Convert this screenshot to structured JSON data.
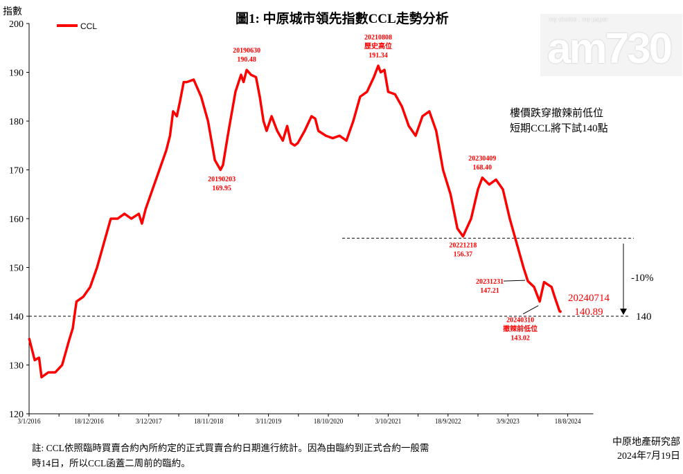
{
  "chart_data": {
    "type": "line",
    "title": "圖1: 中原城市領先指數CCL走勢分析",
    "ylabel": "指數",
    "ylim": [
      120,
      200
    ],
    "yticks": [
      120,
      130,
      140,
      150,
      160,
      170,
      180,
      190,
      200
    ],
    "xticks": [
      {
        "label": "3/1/2016",
        "year": 2016.0
      },
      {
        "label": "18/12/2016",
        "year": 2016.96
      },
      {
        "label": "3/12/2017",
        "year": 2017.92
      },
      {
        "label": "18/11/2018",
        "year": 2018.88
      },
      {
        "label": "3/11/2019",
        "year": 2019.84
      },
      {
        "label": "18/10/2020",
        "year": 2020.8
      },
      {
        "label": "3/10/2021",
        "year": 2021.76
      },
      {
        "label": "18/9/2022",
        "year": 2022.72
      },
      {
        "label": "3/9/2023",
        "year": 2023.68
      },
      {
        "label": "18/8/2024",
        "year": 2024.64
      }
    ],
    "xlim": [
      2016.0,
      2025.05
    ],
    "legend": {
      "label": "CCL",
      "position": "top-left"
    },
    "series": [
      {
        "name": "CCL",
        "color": "#ff0000",
        "points": [
          [
            2016.0,
            135.5
          ],
          [
            2016.09,
            131
          ],
          [
            2016.16,
            131.5
          ],
          [
            2016.2,
            127.5
          ],
          [
            2016.31,
            128.5
          ],
          [
            2016.42,
            128.5
          ],
          [
            2016.53,
            130
          ],
          [
            2016.64,
            135
          ],
          [
            2016.7,
            137.5
          ],
          [
            2016.76,
            143
          ],
          [
            2016.87,
            144
          ],
          [
            2016.98,
            146
          ],
          [
            2017.09,
            150
          ],
          [
            2017.2,
            155
          ],
          [
            2017.31,
            160
          ],
          [
            2017.42,
            160
          ],
          [
            2017.53,
            161
          ],
          [
            2017.64,
            160
          ],
          [
            2017.76,
            161
          ],
          [
            2017.81,
            159
          ],
          [
            2017.87,
            162
          ],
          [
            2017.98,
            166
          ],
          [
            2018.09,
            170
          ],
          [
            2018.2,
            174
          ],
          [
            2018.26,
            177
          ],
          [
            2018.31,
            182
          ],
          [
            2018.37,
            181
          ],
          [
            2018.42,
            184
          ],
          [
            2018.48,
            188
          ],
          [
            2018.53,
            188
          ],
          [
            2018.64,
            188.5
          ],
          [
            2018.76,
            185
          ],
          [
            2018.87,
            180
          ],
          [
            2018.98,
            172
          ],
          [
            2019.07,
            170
          ],
          [
            2019.11,
            171
          ],
          [
            2019.2,
            178
          ],
          [
            2019.31,
            186
          ],
          [
            2019.4,
            189.5
          ],
          [
            2019.44,
            188
          ],
          [
            2019.49,
            190.48
          ],
          [
            2019.56,
            189.5
          ],
          [
            2019.64,
            189
          ],
          [
            2019.7,
            185
          ],
          [
            2019.76,
            180
          ],
          [
            2019.81,
            178
          ],
          [
            2019.89,
            181
          ],
          [
            2019.98,
            178
          ],
          [
            2020.07,
            176
          ],
          [
            2020.14,
            179
          ],
          [
            2020.2,
            175.5
          ],
          [
            2020.26,
            175
          ],
          [
            2020.31,
            175.5
          ],
          [
            2020.42,
            178
          ],
          [
            2020.53,
            181
          ],
          [
            2020.59,
            180.5
          ],
          [
            2020.64,
            178
          ],
          [
            2020.76,
            177
          ],
          [
            2020.87,
            176.5
          ],
          [
            2020.98,
            177
          ],
          [
            2021.09,
            176
          ],
          [
            2021.2,
            180
          ],
          [
            2021.31,
            185
          ],
          [
            2021.42,
            186
          ],
          [
            2021.53,
            189
          ],
          [
            2021.6,
            191.34
          ],
          [
            2021.64,
            190
          ],
          [
            2021.7,
            190.5
          ],
          [
            2021.76,
            186
          ],
          [
            2021.87,
            185.5
          ],
          [
            2021.98,
            183
          ],
          [
            2022.09,
            179
          ],
          [
            2022.2,
            177
          ],
          [
            2022.31,
            181
          ],
          [
            2022.42,
            182
          ],
          [
            2022.53,
            178
          ],
          [
            2022.64,
            170
          ],
          [
            2022.76,
            165
          ],
          [
            2022.87,
            158
          ],
          [
            2022.96,
            156.37
          ],
          [
            2023.09,
            160
          ],
          [
            2023.2,
            166
          ],
          [
            2023.27,
            168.4
          ],
          [
            2023.38,
            167
          ],
          [
            2023.49,
            168
          ],
          [
            2023.6,
            166
          ],
          [
            2023.71,
            160
          ],
          [
            2023.82,
            155
          ],
          [
            2023.93,
            150
          ],
          [
            2024.0,
            147.21
          ],
          [
            2024.1,
            146
          ],
          [
            2024.19,
            143.02
          ],
          [
            2024.26,
            147
          ],
          [
            2024.38,
            146
          ],
          [
            2024.43,
            144
          ],
          [
            2024.51,
            141
          ],
          [
            2024.54,
            140.89
          ]
        ]
      }
    ],
    "annotations": [
      {
        "date": "20190203",
        "value": "169.95",
        "year": 2019.09,
        "y": 169.95,
        "pos": "below"
      },
      {
        "date": "20190630",
        "value": "190.48",
        "year": 2019.49,
        "y": 190.48,
        "pos": "above"
      },
      {
        "date": "20210808",
        "note": "歷史高位",
        "value": "191.34",
        "year": 2021.6,
        "y": 191.34,
        "pos": "above"
      },
      {
        "date": "20221218",
        "value": "156.37",
        "year": 2022.96,
        "y": 156.37,
        "pos": "below"
      },
      {
        "date": "20230409",
        "value": "168.40",
        "year": 2023.27,
        "y": 168.4,
        "pos": "above"
      },
      {
        "date": "20231231",
        "value": "147.21",
        "year": 2024.0,
        "y": 147.21,
        "pos": "left"
      },
      {
        "date": "20240310",
        "note": "撤辣前低位",
        "value": "143.02",
        "year": 2024.19,
        "y": 143.02,
        "pos": "below"
      }
    ],
    "latest": {
      "date": "20240714",
      "value": "140.89"
    },
    "reference_lines": [
      {
        "y": 156,
        "label": ""
      },
      {
        "y": 140,
        "label": "140"
      }
    ],
    "change_label": "-10%",
    "commentary": [
      "樓價跌穿撤辣前低位",
      "短期CCL將下試140點"
    ]
  },
  "footnote": [
    "註: CCL依照臨時買賣合約內所約定的正式買賣合約日期進行統計。因為由臨約到正式合約一般需",
    "時14日，所以CCL函蓋二周前的臨約。"
  ],
  "source": {
    "org": "中原地產研究部",
    "date": "2024年7月19日"
  },
  "logo": {
    "text": "am730",
    "tagline": "my choice . my paper"
  }
}
